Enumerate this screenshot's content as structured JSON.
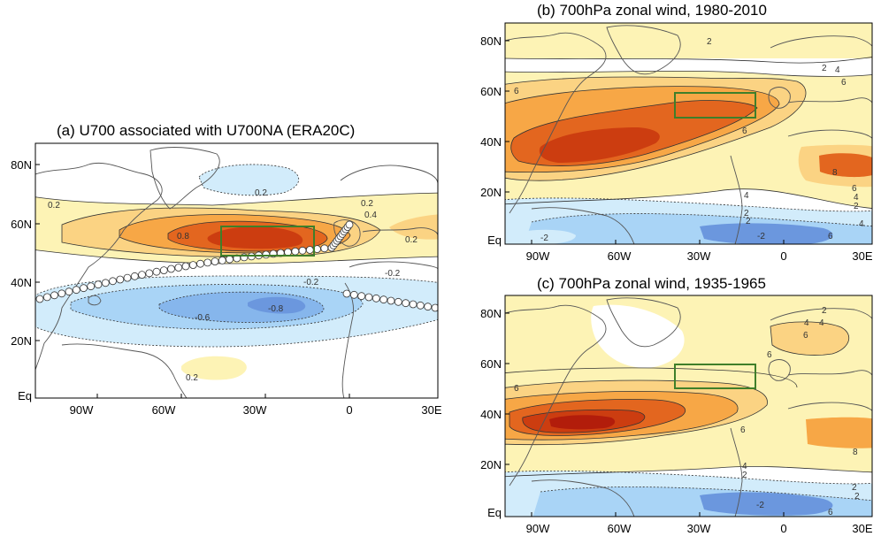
{
  "panels": {
    "a": {
      "title": "(a) U700 associated with U700NA (ERA20C)",
      "x_ticks": [
        "90W",
        "60W",
        "30W",
        "0",
        "30E"
      ],
      "y_ticks": [
        "80N",
        "60N",
        "40N",
        "20N",
        "Eq"
      ],
      "contour_labels": [
        "0.2",
        "0.2",
        "0.2",
        "0.2",
        "0.4",
        "0.8",
        "-0.2",
        "-0.2",
        "-0.6",
        "-0.8",
        "0.2"
      ],
      "shading": [
        {
          "level": "0.2",
          "color": "#fdf3b5"
        },
        {
          "level": "0.4",
          "color": "#fbd383"
        },
        {
          "level": "0.6",
          "color": "#f7a746"
        },
        {
          "level": "0.8",
          "color": "#e3661f"
        },
        {
          "level": "1.0",
          "color": "#cc3d10"
        },
        {
          "level": "-0.2",
          "color": "#d2ecfb"
        },
        {
          "level": "-0.4",
          "color": "#a9d4f6"
        },
        {
          "level": "-0.6",
          "color": "#86b6ec"
        },
        {
          "level": "-0.8",
          "color": "#6b97de"
        }
      ]
    },
    "b": {
      "title": "(b) 700hPa zonal wind, 1980-2010",
      "x_ticks": [
        "90W",
        "60W",
        "30W",
        "0",
        "30E"
      ],
      "y_ticks": [
        "80N",
        "60N",
        "40N",
        "20N",
        "Eq"
      ],
      "contour_labels": [
        "2",
        "2",
        "4",
        "6",
        "6",
        "6",
        "6",
        "8",
        "4",
        "4",
        "2",
        "2",
        "2",
        "4",
        "6",
        "-2",
        "-2"
      ]
    },
    "c": {
      "title": "(c) 700hPa zonal wind, 1935-1965",
      "x_ticks": [
        "90W",
        "60W",
        "30W",
        "0",
        "30E"
      ],
      "y_ticks": [
        "80N",
        "60N",
        "40N",
        "20N",
        "Eq"
      ],
      "contour_labels": [
        "2",
        "4",
        "4",
        "6",
        "6",
        "6",
        "6",
        "8",
        "4",
        "2",
        "2",
        "2",
        "6",
        "-2"
      ]
    }
  },
  "colors": {
    "box": "#3f7f2a",
    "coast": "#555555",
    "frame": "#000000",
    "orange_1": "#fdf3b5",
    "orange_2": "#fbd383",
    "orange_3": "#f7a746",
    "orange_4": "#e3661f",
    "orange_5": "#cc3d10",
    "orange_6": "#b21d0b",
    "blue_1": "#d2ecfb",
    "blue_2": "#a9d4f6",
    "blue_3": "#86b6ec",
    "blue_4": "#6b97de"
  }
}
